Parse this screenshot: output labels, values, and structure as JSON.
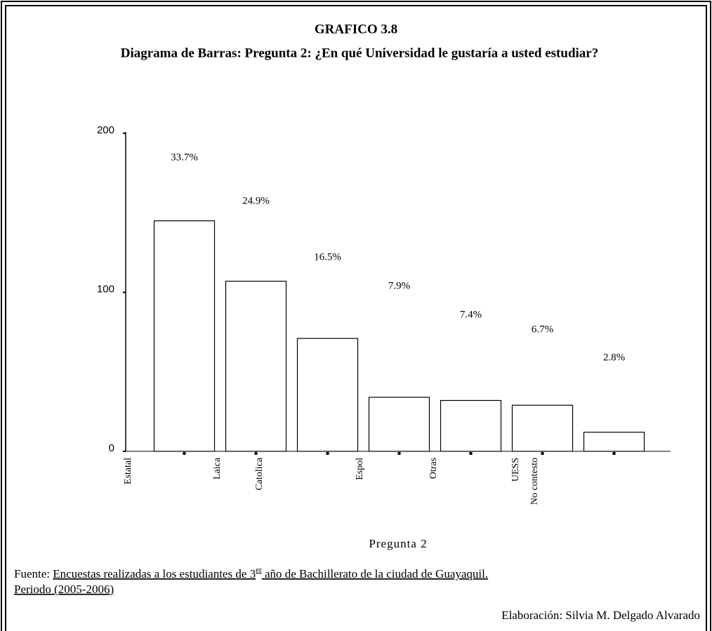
{
  "chart_data": {
    "type": "bar",
    "title": "GRAFICO 3.8",
    "subtitle": "Diagrama de Barras: Pregunta 2: ¿En qué Universidad le gustaría a usted estudiar?",
    "categories": [
      "Estatal",
      "Laica",
      "Catolica",
      "Espol",
      "Otras",
      "UESS",
      "No contesto"
    ],
    "values": [
      145,
      107,
      71,
      34,
      32,
      29,
      12
    ],
    "value_labels": [
      "33.7%",
      "24.9%",
      "16.5%",
      "7.9%",
      "7.4%",
      "6.7%",
      "2.8%"
    ],
    "color": "#ffffff",
    "ylim": [
      0,
      200
    ],
    "yticks": [
      0,
      100,
      200
    ],
    "xlabel": "Pregunta 2",
    "source_prefix": "Fuente: ",
    "source_main": "Encuestas realizadas a los estudiantes de 3",
    "source_sup": "er",
    "source_rest": " año de Bachillerato de la ciudad de Guayaquil.",
    "source_period": "Periodo (2005-2006)",
    "credit": "Elaboración: Silvia M. Delgado Alvarado"
  }
}
